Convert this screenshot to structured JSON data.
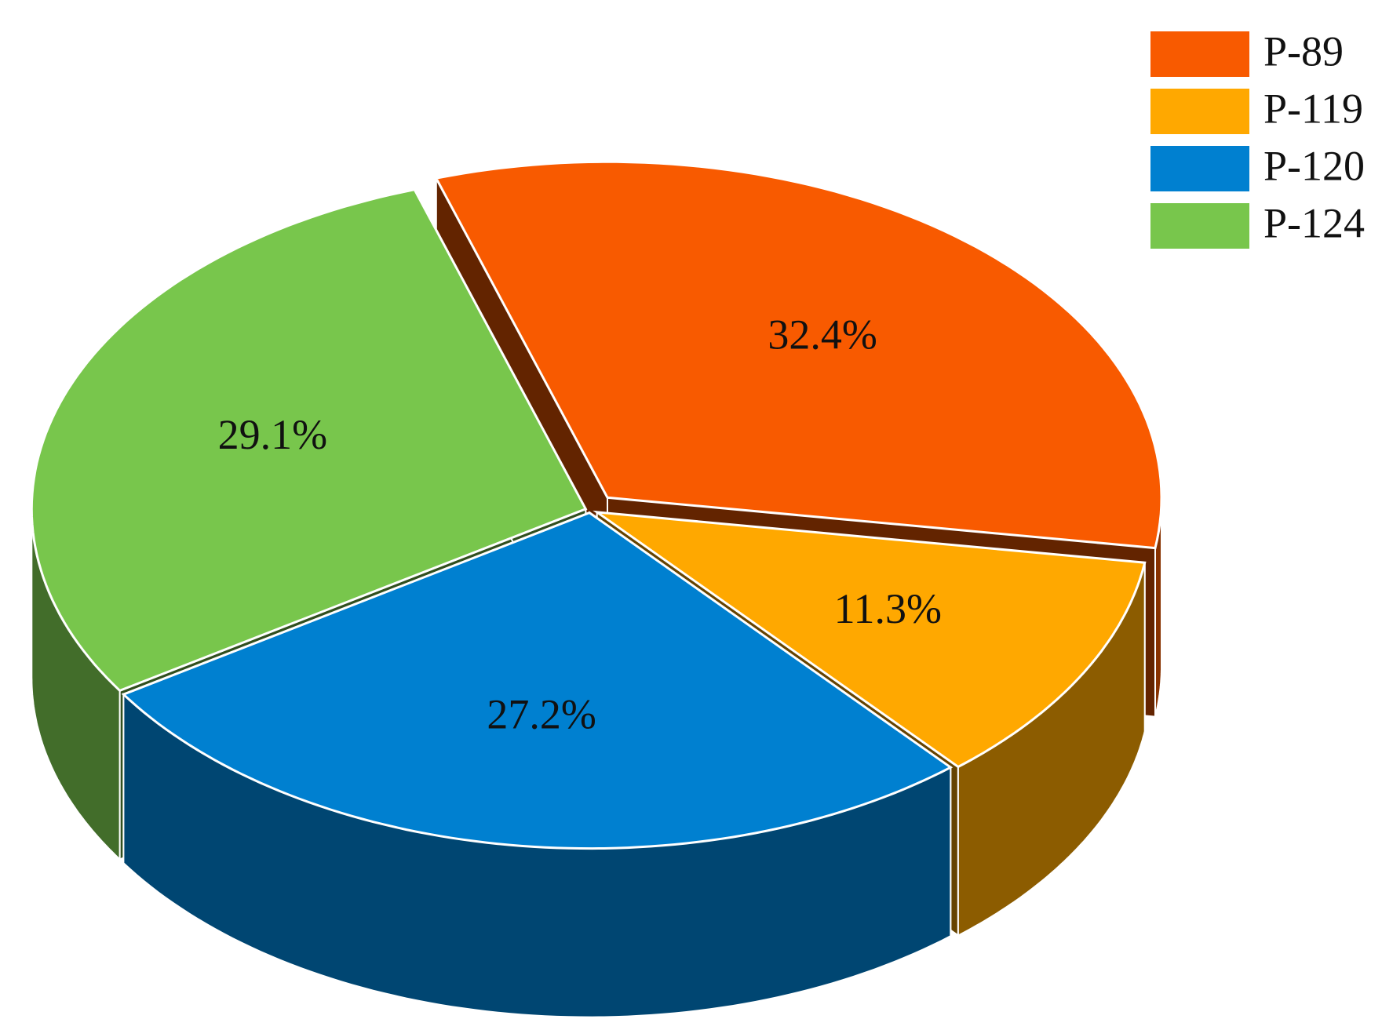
{
  "chart_data": {
    "type": "pie",
    "categories": [
      "P-89",
      "P-119",
      "P-120",
      "P-124"
    ],
    "values": [
      32.4,
      11.3,
      27.2,
      29.1
    ],
    "value_labels": [
      "32.4%",
      "11.3%",
      "27.2%",
      "29.1%"
    ],
    "colors": [
      "#f85a00",
      "#ffa800",
      "#0080d0",
      "#78c64c"
    ],
    "legend": "upper right"
  }
}
